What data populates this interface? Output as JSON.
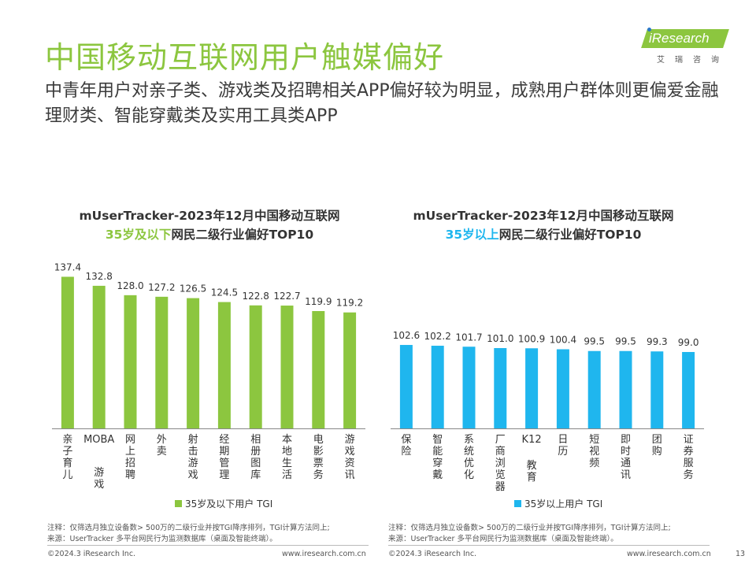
{
  "page": {
    "title": "中国移动互联网用户触媒偏好",
    "subtitle": "中青年用户对亲子类、游戏类及招聘相关APP偏好较为明显，成熟用户群体则更偏爱金融理财类、智能穿戴类及实用工具类APP",
    "logo_text": "iResearch",
    "logo_sub": "艾瑞咨询",
    "page_number": "13",
    "footer_copyright": "©2024.3 iResearch Inc.",
    "footer_site": "www.iresearch.com.cn",
    "note_line1": "注释：仅筛选月独立设备数> 500万的二级行业并按TGI降序排列，TGI计算方法同上;",
    "note_line2": "来源：UserTracker 多平台网民行为监测数据库（桌面及智能终端）。"
  },
  "colors": {
    "title_green": "#8cc63f",
    "bar_green": "#8cc63f",
    "bar_blue": "#1fb6ee",
    "highlight_blue": "#1fb6ee"
  },
  "chart_data": [
    {
      "type": "bar",
      "title_line1": "mUserTracker-2023年12月中国移动互联网",
      "title_highlight": "35岁及以下",
      "title_rest": "网民二级行业偏好TOP10",
      "categories": [
        "亲子育儿",
        "MOBA游戏",
        "网上招聘",
        "外卖",
        "射击游戏",
        "经期管理",
        "相册图库",
        "本地生活",
        "电影票务",
        "游戏资讯"
      ],
      "series": [
        {
          "name": "35岁及以下用户 TGI",
          "values": [
            137.4,
            132.8,
            128.0,
            127.2,
            126.5,
            124.5,
            122.8,
            122.7,
            119.9,
            119.2
          ],
          "color": "#8cc63f"
        }
      ]
    },
    {
      "type": "bar",
      "title_line1": "mUserTracker-2023年12月中国移动互联网",
      "title_highlight": "35岁以上",
      "title_rest": "网民二级行业偏好TOP10",
      "categories": [
        "保险",
        "智能穿戴",
        "系统优化",
        "厂商浏览器",
        "K12教育",
        "日历",
        "短视频",
        "即时通讯",
        "团购",
        "证券服务"
      ],
      "series": [
        {
          "name": "35岁以上用户 TGI",
          "values": [
            102.6,
            102.2,
            101.7,
            101.0,
            100.9,
            100.4,
            99.5,
            99.5,
            99.3,
            99.0
          ],
          "color": "#1fb6ee"
        }
      ]
    }
  ]
}
